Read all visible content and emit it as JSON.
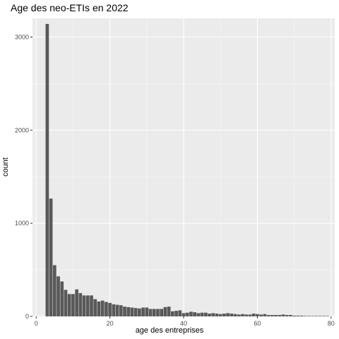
{
  "chart_data": {
    "type": "bar",
    "title": "Age des neo-ETIs en 2022",
    "xlabel": "age des entreprises",
    "ylabel": "count",
    "xlim": [
      -1,
      81
    ],
    "ylim": [
      0,
      3200
    ],
    "xticks": [
      0,
      20,
      40,
      60,
      80
    ],
    "yticks": [
      0,
      1000,
      2000,
      3000
    ],
    "grid": true,
    "colors": {
      "panel": "#ebebeb",
      "grid_major": "#ffffff",
      "bar": "#595959",
      "tick_text": "#4d4d4d"
    },
    "x": [
      3,
      4,
      5,
      6,
      7,
      8,
      9,
      10,
      11,
      12,
      13,
      14,
      15,
      16,
      17,
      18,
      19,
      20,
      21,
      22,
      23,
      24,
      25,
      26,
      27,
      28,
      29,
      30,
      31,
      32,
      33,
      34,
      35,
      36,
      37,
      38,
      39,
      40,
      41,
      42,
      43,
      44,
      45,
      46,
      47,
      48,
      49,
      50,
      51,
      52,
      53,
      54,
      55,
      56,
      57,
      58,
      59,
      60,
      61,
      62,
      63,
      64,
      65,
      66,
      67,
      68,
      69,
      70,
      71,
      72,
      73,
      74,
      75,
      76,
      77,
      78,
      79
    ],
    "values": [
      3140,
      1265,
      550,
      430,
      375,
      285,
      240,
      240,
      290,
      250,
      225,
      225,
      225,
      185,
      160,
      170,
      155,
      145,
      130,
      125,
      120,
      105,
      100,
      95,
      90,
      85,
      95,
      95,
      80,
      80,
      80,
      80,
      100,
      105,
      55,
      60,
      65,
      35,
      40,
      50,
      45,
      35,
      40,
      40,
      30,
      35,
      30,
      25,
      30,
      35,
      30,
      25,
      20,
      25,
      20,
      20,
      30,
      25,
      20,
      25,
      15,
      15,
      15,
      15,
      20,
      15,
      15,
      8,
      8,
      8,
      5,
      5,
      5,
      5,
      5,
      5,
      5
    ]
  }
}
